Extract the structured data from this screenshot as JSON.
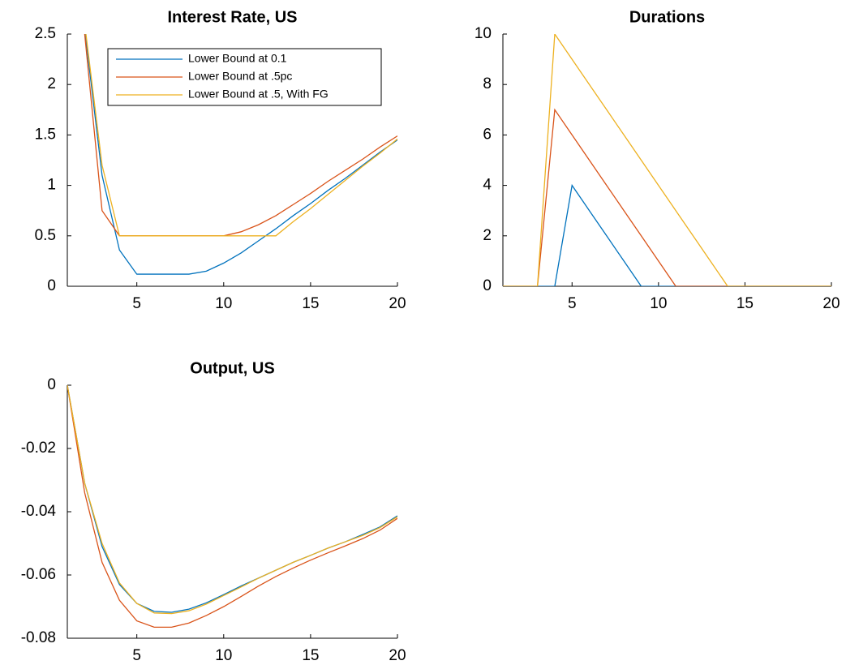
{
  "chart_data": [
    {
      "type": "line",
      "title": "Interest Rate, US",
      "x": [
        1,
        2,
        3,
        4,
        5,
        6,
        7,
        8,
        9,
        10,
        11,
        12,
        13,
        14,
        15,
        16,
        17,
        18,
        19,
        20
      ],
      "series": [
        {
          "name": "Lower Bound at 0.1",
          "color": "#0072bd",
          "values": [
            3.5,
            2.55,
            1.1,
            0.36,
            0.12,
            0.12,
            0.12,
            0.12,
            0.15,
            0.23,
            0.33,
            0.45,
            0.57,
            0.7,
            0.82,
            0.95,
            1.07,
            1.2,
            1.33,
            1.45
          ]
        },
        {
          "name": "Lower Bound at .5pc",
          "color": "#d95319",
          "values": [
            3.5,
            2.5,
            0.75,
            0.5,
            0.5,
            0.5,
            0.5,
            0.5,
            0.5,
            0.5,
            0.54,
            0.61,
            0.7,
            0.81,
            0.92,
            1.04,
            1.15,
            1.26,
            1.38,
            1.49
          ]
        },
        {
          "name": "Lower Bound at .5, With FG",
          "color": "#edb120",
          "values": [
            3.5,
            2.6,
            1.2,
            0.5,
            0.5,
            0.5,
            0.5,
            0.5,
            0.5,
            0.5,
            0.5,
            0.5,
            0.5,
            0.64,
            0.77,
            0.91,
            1.05,
            1.19,
            1.32,
            1.46
          ]
        }
      ],
      "xlim": [
        1,
        20
      ],
      "xticks": [
        5,
        10,
        15,
        20
      ],
      "ylim": [
        0,
        2.5
      ],
      "yticks": [
        0,
        0.5,
        1,
        1.5,
        2,
        2.5
      ],
      "legend": "top-right"
    },
    {
      "type": "line",
      "title": "Durations",
      "x": [
        1,
        2,
        3,
        4,
        5,
        6,
        7,
        8,
        9,
        10,
        11,
        12,
        13,
        14,
        15,
        16,
        17,
        18,
        19,
        20
      ],
      "series": [
        {
          "color": "#0072bd",
          "values": [
            0,
            0,
            0,
            0,
            4,
            3,
            2,
            1,
            0,
            0,
            0,
            0,
            0,
            0,
            0,
            0,
            0,
            0,
            0,
            0
          ]
        },
        {
          "color": "#d95319",
          "values": [
            0,
            0,
            0,
            7,
            6,
            5,
            4,
            3,
            2,
            1,
            0,
            0,
            0,
            0,
            0,
            0,
            0,
            0,
            0,
            0
          ]
        },
        {
          "color": "#edb120",
          "values": [
            0,
            0,
            0,
            10,
            9,
            8,
            7,
            6,
            5,
            4,
            3,
            2,
            1,
            0,
            0,
            0,
            0,
            0,
            0,
            0
          ]
        }
      ],
      "xlim": [
        1,
        20
      ],
      "xticks": [
        5,
        10,
        15,
        20
      ],
      "ylim": [
        0,
        10
      ],
      "yticks": [
        0,
        2,
        4,
        6,
        8,
        10
      ]
    },
    {
      "type": "line",
      "title": "Output, US",
      "x": [
        1,
        2,
        3,
        4,
        5,
        6,
        7,
        8,
        9,
        10,
        11,
        12,
        13,
        14,
        15,
        16,
        17,
        18,
        19,
        20
      ],
      "series": [
        {
          "color": "#0072bd",
          "values": [
            0,
            -0.031,
            -0.051,
            -0.063,
            -0.069,
            -0.0715,
            -0.0718,
            -0.0708,
            -0.0688,
            -0.0662,
            -0.0635,
            -0.061,
            -0.0585,
            -0.056,
            -0.0538,
            -0.0515,
            -0.0495,
            -0.0472,
            -0.0448,
            -0.0413
          ]
        },
        {
          "color": "#d95319",
          "values": [
            0,
            -0.034,
            -0.056,
            -0.068,
            -0.0745,
            -0.0765,
            -0.0765,
            -0.0752,
            -0.0728,
            -0.07,
            -0.0668,
            -0.0635,
            -0.0605,
            -0.0578,
            -0.0553,
            -0.053,
            -0.0508,
            -0.0485,
            -0.0458,
            -0.0421
          ]
        },
        {
          "color": "#edb120",
          "values": [
            0,
            -0.031,
            -0.05,
            -0.0625,
            -0.069,
            -0.072,
            -0.0722,
            -0.0713,
            -0.0692,
            -0.0665,
            -0.0638,
            -0.061,
            -0.0585,
            -0.056,
            -0.0538,
            -0.0515,
            -0.0495,
            -0.0475,
            -0.045,
            -0.0416
          ]
        }
      ],
      "xlim": [
        1,
        20
      ],
      "xticks": [
        5,
        10,
        15,
        20
      ],
      "ylim": [
        -0.08,
        0
      ],
      "yticks": [
        -0.08,
        -0.06,
        -0.04,
        -0.02,
        0
      ]
    }
  ]
}
